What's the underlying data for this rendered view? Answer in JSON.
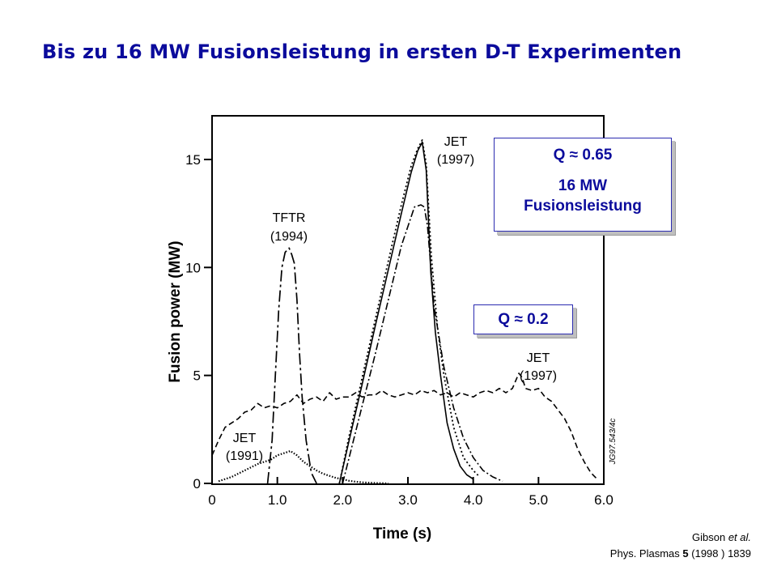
{
  "slide_title": "Bis zu 16 MW Fusionsleistung in ersten D-T Experimenten",
  "callouts": {
    "q065": {
      "line1": "Q ≈ 0.65",
      "line2": "16 MW",
      "line3": "Fusionsleistung"
    },
    "q02": {
      "line1": "Q ≈ 0.2"
    }
  },
  "citation": {
    "authors": "Gibson",
    "etal": "et al.",
    "journal": "Phys. Plasmas",
    "volume": "5",
    "rest": "(1998 ) 1839"
  },
  "colors": {
    "title": "#0b0b9c",
    "callout_text": "#0b0b9c",
    "callout_border": "#2b2bb0"
  },
  "chart_data": {
    "type": "line",
    "xlabel": "Time (s)",
    "ylabel": "Fusion power (MW)",
    "xlim": [
      0,
      6.0
    ],
    "ylim": [
      0,
      16.5
    ],
    "x_ticks": [
      "0",
      "1.0",
      "2.0",
      "3.0",
      "4.0",
      "5.0",
      "6.0"
    ],
    "y_ticks": [
      "0",
      "5",
      "10",
      "15"
    ],
    "annotations": [
      {
        "line1": "JET",
        "line2": "(1997)"
      },
      {
        "line1": "TFTR",
        "line2": "(1994)"
      },
      {
        "line1": "JET",
        "line2": "(1997)"
      },
      {
        "line1": "JET",
        "line2": "(1991)"
      }
    ],
    "id_code": "JG97.543/4c",
    "series": [
      {
        "style": "solid",
        "x": [
          1.95,
          2.1,
          2.3,
          2.5,
          2.7,
          2.9,
          3.05,
          3.15,
          3.22,
          3.28,
          3.35,
          3.42,
          3.5,
          3.6,
          3.7,
          3.8,
          3.9,
          4.0
        ],
        "y": [
          0,
          2.0,
          4.6,
          7.3,
          9.9,
          12.5,
          14.4,
          15.4,
          15.8,
          14.5,
          9.8,
          7.0,
          5.0,
          2.8,
          1.6,
          0.8,
          0.4,
          0.2
        ]
      },
      {
        "style": "dotted",
        "x": [
          1.95,
          2.1,
          2.3,
          2.5,
          2.7,
          2.9,
          3.05,
          3.15,
          3.22,
          3.28,
          3.36,
          3.45,
          3.55,
          3.7,
          3.85,
          4.0,
          4.1
        ],
        "y": [
          0,
          2.2,
          4.9,
          7.6,
          10.3,
          12.9,
          14.7,
          15.5,
          15.9,
          14.8,
          10.5,
          7.3,
          5.0,
          2.6,
          1.2,
          0.6,
          0.3
        ]
      },
      {
        "style": "dash-dot",
        "x": [
          2.0,
          2.1,
          2.3,
          2.5,
          2.7,
          2.9,
          3.1,
          3.2,
          3.25,
          3.3,
          3.4,
          3.55,
          3.7,
          3.85,
          4.0,
          4.15,
          4.3,
          4.45
        ],
        "y": [
          0,
          1.2,
          3.6,
          6.0,
          8.5,
          11.0,
          12.8,
          12.9,
          12.8,
          11.9,
          8.2,
          5.4,
          3.5,
          2.1,
          1.2,
          0.6,
          0.3,
          0.1
        ]
      },
      {
        "style": "long-dash",
        "x": [
          0.85,
          0.92,
          0.97,
          1.02,
          1.07,
          1.12,
          1.18,
          1.22,
          1.26,
          1.3,
          1.34,
          1.38,
          1.44,
          1.52,
          1.6
        ],
        "y": [
          0,
          2.0,
          5.0,
          8.0,
          10.0,
          10.7,
          10.9,
          10.6,
          10.2,
          8.5,
          6.0,
          4.0,
          2.0,
          0.5,
          0
        ]
      },
      {
        "style": "dashed",
        "x": [
          0,
          0.1,
          0.2,
          0.3,
          0.4,
          0.5,
          0.6,
          0.7,
          0.8,
          0.9,
          1.0,
          1.1,
          1.2,
          1.3,
          1.4,
          1.5,
          1.6,
          1.7,
          1.8,
          1.9,
          2.0,
          2.1,
          2.2,
          2.3,
          2.4,
          2.5,
          2.6,
          2.7,
          2.8,
          2.9,
          3.0,
          3.1,
          3.2,
          3.3,
          3.4,
          3.5,
          3.6,
          3.7,
          3.8,
          3.9,
          4.0,
          4.1,
          4.2,
          4.3,
          4.4,
          4.5,
          4.6,
          4.7,
          4.75,
          4.8,
          4.9,
          5.0,
          5.1,
          5.2,
          5.3,
          5.4,
          5.5,
          5.6,
          5.7,
          5.8,
          5.9
        ],
        "y": [
          1.3,
          2.0,
          2.6,
          2.8,
          3.0,
          3.3,
          3.4,
          3.7,
          3.5,
          3.6,
          3.5,
          3.7,
          3.8,
          4.1,
          3.7,
          3.9,
          4.0,
          3.8,
          4.2,
          3.9,
          4.0,
          4.0,
          4.2,
          4.0,
          4.1,
          4.1,
          4.3,
          4.1,
          4.0,
          4.1,
          4.2,
          4.1,
          4.3,
          4.2,
          4.3,
          4.1,
          4.2,
          4.0,
          4.2,
          4.1,
          4.0,
          4.2,
          4.3,
          4.2,
          4.4,
          4.2,
          4.4,
          5.1,
          4.9,
          4.4,
          4.3,
          4.4,
          4.0,
          3.8,
          3.4,
          3.0,
          2.4,
          1.6,
          1.0,
          0.5,
          0.2
        ]
      },
      {
        "style": "dotted-fine",
        "x": [
          0.1,
          0.3,
          0.5,
          0.7,
          0.9,
          1.0,
          1.1,
          1.2,
          1.3,
          1.4,
          1.5,
          1.6,
          1.7,
          1.8,
          1.9,
          2.0,
          2.1,
          2.2,
          2.3,
          2.5,
          2.7
        ],
        "y": [
          0.1,
          0.3,
          0.6,
          0.9,
          1.1,
          1.3,
          1.4,
          1.5,
          1.3,
          1.0,
          0.8,
          0.6,
          0.45,
          0.35,
          0.25,
          0.2,
          0.12,
          0.08,
          0.05,
          0.02,
          0
        ]
      }
    ]
  }
}
